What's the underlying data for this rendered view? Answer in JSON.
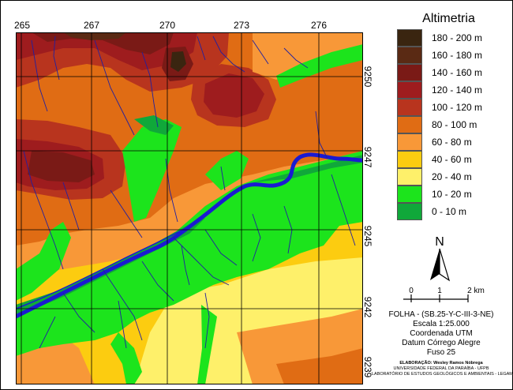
{
  "legend": {
    "title": "Altimetria",
    "classes": [
      {
        "label": "180 - 200 m",
        "color": "#3a2510"
      },
      {
        "label": "160 - 180 m",
        "color": "#5a2a14"
      },
      {
        "label": "140 - 160 m",
        "color": "#7a1a16"
      },
      {
        "label": "120 - 140 m",
        "color": "#9e1c1e"
      },
      {
        "label": "100 - 120 m",
        "color": "#b8341e"
      },
      {
        "label": "80 - 100 m",
        "color": "#e06c14"
      },
      {
        "label": "60 - 80 m",
        "color": "#f89838"
      },
      {
        "label": "40 - 60 m",
        "color": "#fccc10"
      },
      {
        "label": "20 - 40 m",
        "color": "#fef06a"
      },
      {
        "label": "10 - 20 m",
        "color": "#1ce41c"
      },
      {
        "label": "0 - 10 m",
        "color": "#10a83a"
      }
    ]
  },
  "grid": {
    "top_labels": [
      "265",
      "267",
      "270",
      "273",
      "276"
    ],
    "right_labels": [
      "9250",
      "9247",
      "9245",
      "9242",
      "9239"
    ]
  },
  "north_arrow": {
    "label": "N"
  },
  "scale_bar": {
    "labels": [
      "0",
      "1",
      "2 km"
    ]
  },
  "sheet_info": {
    "folha": "FOLHA - (SB.25-Y-C-III-3-NE)",
    "escala": "Escala 1:25.000",
    "coordenada": "Coordenada UTM",
    "datum": "Datum Córrego Alegre",
    "fuso": "Fuso 25"
  },
  "credits": {
    "elaboracao": "ELABORAÇÃO: Wesley Ramos Nóbrega",
    "universidade": "UNIVERSIDADE FEDERAL DA PARAÍBA - UFPB",
    "laboratorio": "LABORATÓRIO DE ESTUDOS GEOLÓGICOS E AMBIENTAIS - LEGAM"
  },
  "colors": {
    "river": "#1a1ad2",
    "stream": "#2020a0",
    "grid": "#000000"
  }
}
